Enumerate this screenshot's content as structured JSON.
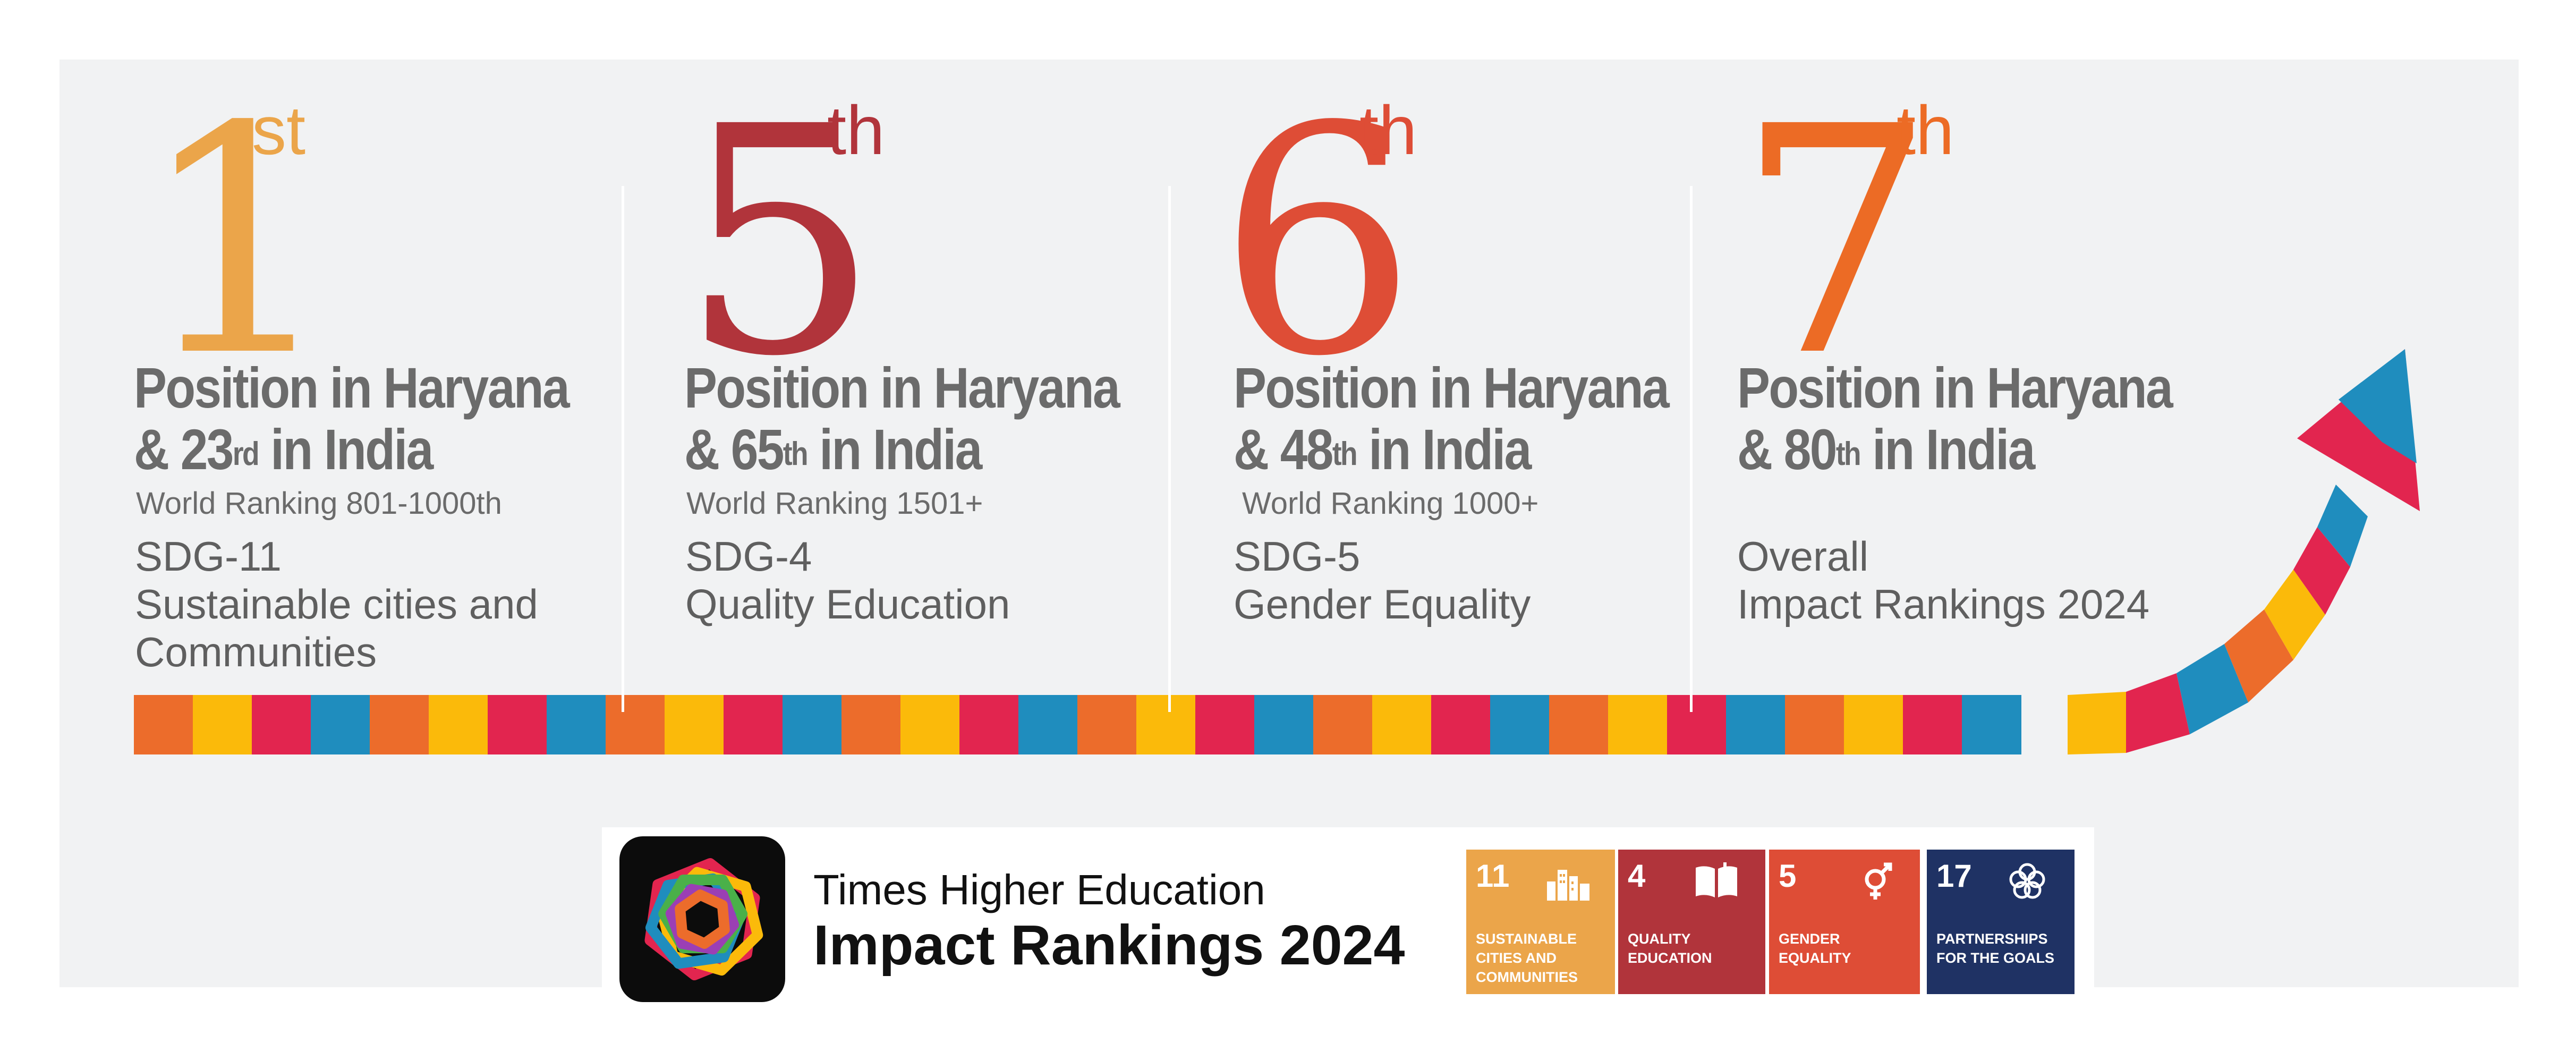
{
  "colors": {
    "rank1": "#eba54a",
    "rank5": "#b1343b",
    "rank6": "#de4d36",
    "rank7": "#ec6b25",
    "ribbon": [
      "#ec6c2b",
      "#fbba0a",
      "#e2254f",
      "#1f8dbe"
    ]
  },
  "rankings": [
    {
      "number": "1",
      "suffix": "st",
      "line1": "Position in Haryana",
      "line2_prefix": "& 23",
      "line2_sup": "rd",
      "line2_suffix": " in India",
      "world": "World Ranking 801-1000th",
      "sdg_code": "SDG-11",
      "sdg_name_1": "Sustainable cities and",
      "sdg_name_2": "Communities"
    },
    {
      "number": "5",
      "suffix": "th",
      "line1": "Position in Haryana",
      "line2_prefix": "& 65",
      "line2_sup": "th",
      "line2_suffix": " in India",
      "world": "World Ranking 1501+",
      "sdg_code": "SDG-4",
      "sdg_name_1": "Quality Education"
    },
    {
      "number": "6",
      "suffix": "th",
      "line1": "Position in Haryana",
      "line2_prefix": "& 48",
      "line2_sup": "th",
      "line2_suffix": " in India",
      "world": "World Ranking 1000+",
      "sdg_code": "SDG-5",
      "sdg_name_1": "Gender Equality"
    },
    {
      "number": "7",
      "suffix": "th",
      "line1": "Position in Haryana",
      "line2_prefix": "& 80",
      "line2_sup": "th",
      "line2_suffix": " in India",
      "sdg_code": "Overall",
      "sdg_name_1": "Impact Rankings 2024"
    }
  ],
  "the_banner": {
    "line1": "Times Higher Education",
    "line2": "Impact Rankings 2024"
  },
  "sdg_tiles": [
    {
      "num": "11",
      "text": "SUSTAINABLE\nCITIES AND\nCOMMUNITIES",
      "color": "#eba54a",
      "icon": "city-buildings-icon"
    },
    {
      "num": "4",
      "text": "QUALITY\nEDUCATION",
      "color": "#b1343b",
      "icon": "open-book-icon"
    },
    {
      "num": "5",
      "text": "GENDER\nEQUALITY",
      "color": "#de4d36",
      "icon": "gender-symbol-icon"
    },
    {
      "num": "17",
      "text": "PARTNERSHIPS\nFOR THE GOALS",
      "color": "#1f3264",
      "icon": "flower-rings-icon"
    }
  ]
}
